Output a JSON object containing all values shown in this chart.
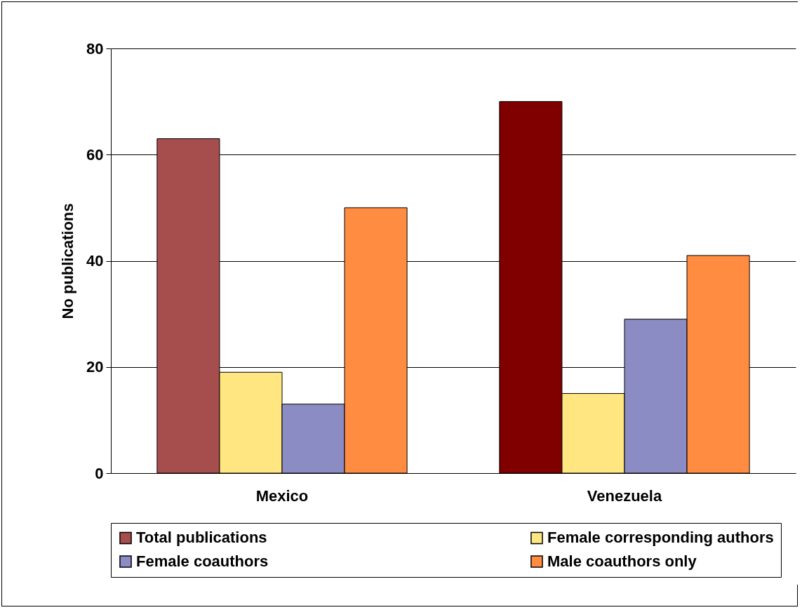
{
  "chart_data": {
    "type": "bar",
    "ylabel": "No publications",
    "categories": [
      "Mexico",
      "Venezuela"
    ],
    "series": [
      {
        "name": "Total publications",
        "color": "#a64d4d",
        "colors": [
          "#a64d4d",
          "#800000"
        ],
        "values": [
          63,
          70
        ]
      },
      {
        "name": "Female corresponding authors",
        "color": "#ffe680",
        "values": [
          19,
          15
        ]
      },
      {
        "name": "Female coauthors",
        "color": "#8c8cc4",
        "values": [
          13,
          29
        ]
      },
      {
        "name": "Male coauthors only",
        "color": "#ff8c40",
        "values": [
          50,
          41
        ]
      }
    ],
    "ylim": [
      0,
      80
    ],
    "yticks": [
      0,
      20,
      40,
      60,
      80
    ],
    "grid": "y",
    "legend": "bottom"
  }
}
